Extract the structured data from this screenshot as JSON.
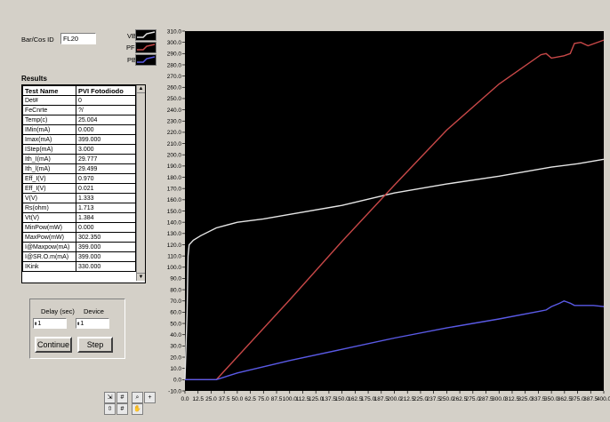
{
  "bar_cos_id": {
    "label": "Bar/Cos ID",
    "value": "FL20"
  },
  "legend": {
    "items": [
      {
        "name": "VBias",
        "color": "#e6e6e6"
      },
      {
        "name": "PFront",
        "color": "#c84848"
      },
      {
        "name": "PBack",
        "color": "#5a5ae6"
      }
    ]
  },
  "results": {
    "title": "Results",
    "headers": [
      "Test Name",
      "PVI Fotodiodo"
    ],
    "rows": [
      [
        "Det#",
        "0"
      ],
      [
        "FeCnrte",
        "?/"
      ],
      [
        "Temp(c)",
        "25.004"
      ],
      [
        "IMin(mA)",
        "0.000"
      ],
      [
        "Imax(mA)",
        "399.000"
      ],
      [
        "IStep(mA)",
        "3.000"
      ],
      [
        "Ith_I(mA)",
        "29.777"
      ],
      [
        "Ith_l(mA)",
        "29.499"
      ],
      [
        "Eff_I(V)",
        "0.970"
      ],
      [
        "Eff_I(V)",
        "0.021"
      ],
      [
        "V(V)",
        "1.333"
      ],
      [
        "Rs(ohm)",
        "1.713"
      ],
      [
        "Vt(V)",
        "1.384"
      ],
      [
        "MinPow(mW)",
        "0.000"
      ],
      [
        "MaxPow(mW)",
        "302.350"
      ],
      [
        "I@Maxpow(mA)",
        "399.000"
      ],
      [
        "I@SR.O.m(mA)",
        "399.000"
      ],
      [
        "IKink",
        "330.000"
      ]
    ]
  },
  "controls": {
    "delay_label": "Delay (sec)",
    "delay_value": "1",
    "device_label": "Device",
    "device_value": "1",
    "continue_label": "Continue",
    "step_label": "Step"
  },
  "chart_data": {
    "type": "line",
    "xlim": [
      0,
      400
    ],
    "ylim": [
      -10,
      310
    ],
    "x_ticks": [
      "0.0",
      "12.5",
      "25.0",
      "37.5",
      "50.0",
      "62.5",
      "75.0",
      "87.5",
      "100.0",
      "112.5",
      "125.0",
      "137.5",
      "150.0",
      "162.5",
      "175.0",
      "187.5",
      "200.0",
      "212.5",
      "225.0",
      "237.5",
      "250.0",
      "262.5",
      "275.0",
      "287.5",
      "300.0",
      "312.5",
      "325.0",
      "337.5",
      "350.0",
      "362.5",
      "375.0",
      "387.5",
      "400.0"
    ],
    "y_ticks": [
      "-10.0",
      "0.0",
      "10.0",
      "20.0",
      "30.0",
      "40.0",
      "50.0",
      "60.0",
      "70.0",
      "80.0",
      "90.0",
      "100.0",
      "110.0",
      "120.0",
      "130.0",
      "140.0",
      "150.0",
      "160.0",
      "170.0",
      "180.0",
      "190.0",
      "200.0",
      "210.0",
      "220.0",
      "230.0",
      "240.0",
      "250.0",
      "260.0",
      "270.0",
      "280.0",
      "290.0",
      "300.0",
      "310.0"
    ],
    "x_tick_values": [
      0,
      12.5,
      25,
      37.5,
      50,
      62.5,
      75,
      87.5,
      100,
      112.5,
      125,
      137.5,
      150,
      162.5,
      175,
      187.5,
      200,
      212.5,
      225,
      237.5,
      250,
      262.5,
      275,
      287.5,
      300,
      312.5,
      325,
      337.5,
      350,
      362.5,
      375,
      387.5,
      400
    ],
    "y_tick_values": [
      -10,
      0,
      10,
      20,
      30,
      40,
      50,
      60,
      70,
      80,
      90,
      100,
      110,
      120,
      130,
      140,
      150,
      160,
      170,
      180,
      190,
      200,
      210,
      220,
      230,
      240,
      250,
      260,
      270,
      280,
      290,
      300,
      310
    ],
    "series": [
      {
        "name": "VBias",
        "color": "#e6e6e6",
        "points": [
          [
            0,
            0
          ],
          [
            2,
            60
          ],
          [
            3,
            110
          ],
          [
            4,
            120
          ],
          [
            8,
            124
          ],
          [
            15,
            128
          ],
          [
            30,
            135
          ],
          [
            50,
            140
          ],
          [
            75,
            143
          ],
          [
            100,
            147
          ],
          [
            150,
            155
          ],
          [
            200,
            166
          ],
          [
            250,
            174
          ],
          [
            300,
            181
          ],
          [
            350,
            189
          ],
          [
            375,
            192
          ],
          [
            400,
            196
          ]
        ]
      },
      {
        "name": "PFront",
        "color": "#c84848",
        "points": [
          [
            0,
            0
          ],
          [
            28,
            0
          ],
          [
            30,
            0
          ],
          [
            100,
            71
          ],
          [
            150,
            123
          ],
          [
            200,
            173
          ],
          [
            250,
            222
          ],
          [
            300,
            263
          ],
          [
            340,
            289
          ],
          [
            345,
            290
          ],
          [
            350,
            286
          ],
          [
            362,
            288
          ],
          [
            368,
            290
          ],
          [
            372,
            299
          ],
          [
            378,
            300
          ],
          [
            385,
            297
          ],
          [
            400,
            302
          ]
        ]
      },
      {
        "name": "PBack",
        "color": "#5a5ae6",
        "points": [
          [
            0,
            0
          ],
          [
            30,
            0
          ],
          [
            50,
            6
          ],
          [
            100,
            17
          ],
          [
            150,
            27
          ],
          [
            200,
            37
          ],
          [
            250,
            46
          ],
          [
            300,
            54
          ],
          [
            340,
            61
          ],
          [
            345,
            62
          ],
          [
            350,
            65
          ],
          [
            358,
            68
          ],
          [
            362,
            70
          ],
          [
            365,
            69
          ],
          [
            368,
            68
          ],
          [
            372,
            66
          ],
          [
            380,
            66
          ],
          [
            390,
            66
          ],
          [
            400,
            65
          ]
        ]
      }
    ]
  }
}
